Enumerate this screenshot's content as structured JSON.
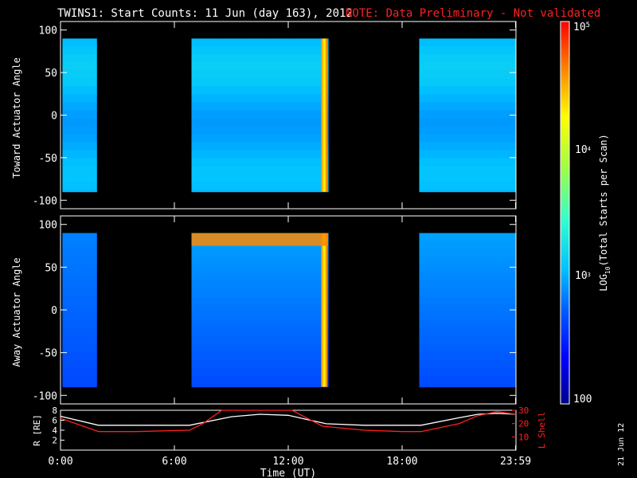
{
  "chart_data": {
    "type": "heatmap",
    "title": "TWINS1: Start Counts: 11 Jun (day 163), 2012",
    "note": "NOTE: Data Preliminary - Not validated",
    "date_stamp": "21 Jun 12",
    "xlabel": "Time (UT)",
    "xlim_hours": [
      0,
      24
    ],
    "x_ticks": [
      "0:00",
      "6:00",
      "12:00",
      "18:00",
      "23:59"
    ],
    "x_tick_hours": [
      0,
      6,
      12,
      18,
      23.98
    ],
    "colorbar": {
      "label": "LOG10(Total Starts per Scan)",
      "scale": "log",
      "range": [
        100,
        100000
      ],
      "ticks": [
        "100",
        "10^3",
        "10^4",
        "10^5"
      ],
      "colors": [
        "#00008c",
        "#0000ff",
        "#0060ff",
        "#00c0ff",
        "#30ffd0",
        "#a0ff40",
        "#ffff00",
        "#ff8000",
        "#ff0000"
      ]
    },
    "panels": [
      {
        "ylabel": "Toward Actuator Angle",
        "ylim": [
          -110,
          110
        ],
        "y_ticks": [
          100,
          50,
          0,
          -50,
          -100
        ],
        "data_range_deg": [
          -90,
          90
        ],
        "coverage_hours": [
          [
            0.1,
            1.9
          ],
          [
            6.9,
            14.1
          ],
          [
            18.9,
            24
          ]
        ],
        "typical_log_counts": 3.0,
        "peak_log_counts": 4.9,
        "peak_time_hours": 13.9
      },
      {
        "ylabel": "Away Actuator Angle",
        "ylim": [
          -110,
          110
        ],
        "y_ticks": [
          100,
          50,
          0,
          -50,
          -100
        ],
        "data_range_deg": [
          -90,
          90
        ],
        "coverage_hours": [
          [
            0.1,
            1.9
          ],
          [
            6.9,
            14.1
          ],
          [
            18.9,
            24
          ]
        ],
        "typical_log_counts": 2.7,
        "peak_log_counts": 4.9,
        "peak_time_hours": 13.9
      }
    ],
    "orbit_panel": {
      "left_axis": {
        "label": "R [RE]",
        "range": [
          0,
          8
        ],
        "ticks": [
          2,
          4,
          6,
          8
        ]
      },
      "right_axis": {
        "label": "L Shell",
        "range": [
          0,
          30
        ],
        "ticks": [
          10,
          20,
          30
        ]
      },
      "series": [
        {
          "name": "R [RE]",
          "color": "#ffffff",
          "x": [
            0,
            2,
            4,
            6.8,
            9,
            10.5,
            12,
            14,
            16,
            18,
            19,
            21,
            22,
            23,
            24
          ],
          "y": [
            6.8,
            5.0,
            5.0,
            5.0,
            6.7,
            7.2,
            7.0,
            5.3,
            5.0,
            5.0,
            5.0,
            6.5,
            7.2,
            7.4,
            7.2
          ]
        },
        {
          "name": "L Shell",
          "color": "#ff2020",
          "x": [
            0,
            2,
            4,
            6.8,
            7.5,
            8.5,
            12.2,
            13.8,
            16,
            18,
            19,
            21,
            22,
            23,
            24
          ],
          "y": [
            24,
            14,
            14,
            15,
            20,
            30,
            30,
            18,
            15,
            14,
            14,
            20,
            26,
            29,
            27
          ]
        }
      ]
    }
  }
}
